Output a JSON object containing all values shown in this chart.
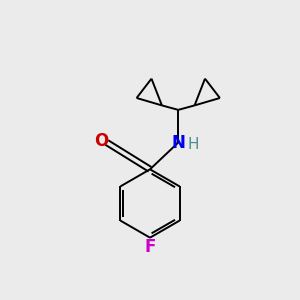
{
  "bg_color": "#ebebeb",
  "atom_colors": {
    "O": "#cc0000",
    "N": "#0000ee",
    "H": "#4a9090",
    "F": "#cc00cc",
    "C": "#000000"
  },
  "bond_color": "#000000",
  "bond_lw": 1.4,
  "font_size": 12,
  "xlim": [
    0,
    10
  ],
  "ylim": [
    0,
    10
  ]
}
